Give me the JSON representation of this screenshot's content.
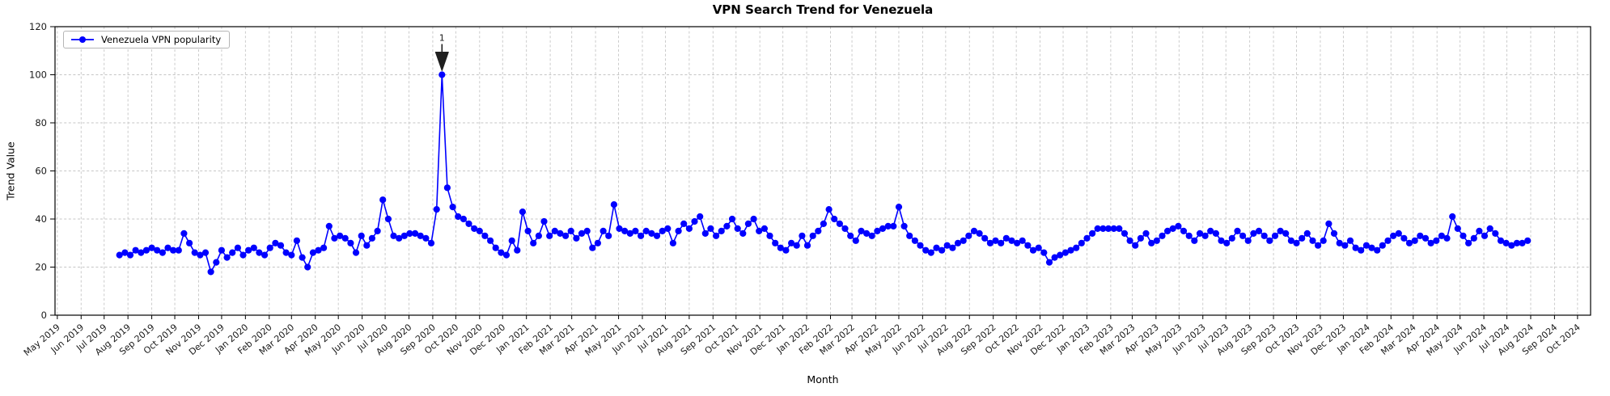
{
  "title": "VPN Search Trend for Venezuela",
  "xlabel": "Month",
  "ylabel": "Trend Value",
  "legend": {
    "label": "Venezuela VPN popularity"
  },
  "annotation": {
    "label": "1",
    "date": "2020-09-13",
    "value": 100
  },
  "colors": {
    "line": "#0000ff",
    "marker": "#0000ff",
    "grid": "#c6c6c6",
    "spine": "#000000",
    "annotation_arrow": "#1f1f1f",
    "background": "#ffffff"
  },
  "chart_data": {
    "type": "line",
    "title": "VPN Search Trend for Venezuela",
    "xlabel": "Month",
    "ylabel": "Trend Value",
    "ylim": [
      0,
      120
    ],
    "y_ticks": [
      0,
      20,
      40,
      60,
      80,
      100,
      120
    ],
    "xlim": [
      "2019-04-28",
      "2024-10-18"
    ],
    "grid": true,
    "legend_position": "upper left",
    "x_ticks": [
      "May 2019",
      "Jun 2019",
      "Jul 2019",
      "Aug 2019",
      "Sep 2019",
      "Oct 2019",
      "Nov 2019",
      "Dec 2019",
      "Jan 2020",
      "Feb 2020",
      "Mar 2020",
      "Apr 2020",
      "May 2020",
      "Jun 2020",
      "Jul 2020",
      "Aug 2020",
      "Sep 2020",
      "Oct 2020",
      "Nov 2020",
      "Dec 2020",
      "Jan 2021",
      "Feb 2021",
      "Mar 2021",
      "Apr 2021",
      "May 2021",
      "Jun 2021",
      "Jul 2021",
      "Aug 2021",
      "Sep 2021",
      "Oct 2021",
      "Nov 2021",
      "Dec 2021",
      "Jan 2022",
      "Feb 2022",
      "Mar 2022",
      "Apr 2022",
      "May 2022",
      "Jun 2022",
      "Jul 2022",
      "Aug 2022",
      "Sep 2022",
      "Oct 2022",
      "Nov 2022",
      "Dec 2022",
      "Jan 2023",
      "Feb 2023",
      "Mar 2023",
      "Apr 2023",
      "May 2023",
      "Jun 2023",
      "Jul 2023",
      "Aug 2023",
      "Sep 2023",
      "Oct 2023",
      "Nov 2023",
      "Dec 2023",
      "Jan 2024",
      "Feb 2024",
      "Mar 2024",
      "Apr 2024",
      "May 2024",
      "Jun 2024",
      "Jul 2024",
      "Aug 2024",
      "Sep 2024",
      "Oct 2024"
    ],
    "series": [
      {
        "name": "Venezuela VPN popularity",
        "start_date": "2019-07-21",
        "interval": "weekly",
        "values": [
          25,
          26,
          25,
          27,
          26,
          27,
          28,
          27,
          26,
          28,
          27,
          27,
          34,
          30,
          26,
          25,
          26,
          18,
          22,
          27,
          24,
          26,
          28,
          25,
          27,
          28,
          26,
          25,
          28,
          30,
          29,
          26,
          25,
          31,
          24,
          20,
          26,
          27,
          28,
          37,
          32,
          33,
          32,
          30,
          26,
          33,
          29,
          32,
          35,
          48,
          40,
          33,
          32,
          33,
          34,
          34,
          33,
          32,
          30,
          44,
          100,
          53,
          45,
          41,
          40,
          38,
          36,
          35,
          33,
          31,
          28,
          26,
          25,
          31,
          27,
          43,
          35,
          30,
          33,
          39,
          33,
          35,
          34,
          33,
          35,
          32,
          34,
          35,
          28,
          30,
          35,
          33,
          46,
          36,
          35,
          34,
          35,
          33,
          35,
          34,
          33,
          35,
          36,
          30,
          35,
          38,
          36,
          39,
          41,
          34,
          36,
          33,
          35,
          37,
          40,
          36,
          34,
          38,
          40,
          35,
          36,
          33,
          30,
          28,
          27,
          30,
          29,
          33,
          29,
          33,
          35,
          38,
          44,
          40,
          38,
          36,
          33,
          31,
          35,
          34,
          33,
          35,
          36,
          37,
          37,
          45,
          37,
          33,
          31,
          29,
          27,
          26,
          28,
          27,
          29,
          28,
          30,
          31,
          33,
          35,
          34,
          32,
          30,
          31,
          30,
          32,
          31,
          30,
          31,
          29,
          27,
          28,
          26,
          22,
          24,
          25,
          26,
          27,
          28,
          30,
          32,
          34,
          36,
          36,
          36,
          36,
          36,
          34,
          31,
          29,
          32,
          34,
          30,
          31,
          33,
          35,
          36,
          37,
          35,
          33,
          31,
          34,
          33,
          35,
          34,
          31,
          30,
          32,
          35,
          33,
          31,
          34,
          35,
          33,
          31,
          33,
          35,
          34,
          31,
          30,
          32,
          34,
          31,
          29,
          31,
          38,
          34,
          30,
          29,
          31,
          28,
          27,
          29,
          28,
          27,
          29,
          31,
          33,
          34,
          32,
          30,
          31,
          33,
          32,
          30,
          31,
          33,
          32,
          41,
          36,
          33,
          30,
          32,
          35,
          33,
          36,
          34,
          31,
          30,
          29,
          30,
          30,
          31
        ]
      }
    ]
  }
}
